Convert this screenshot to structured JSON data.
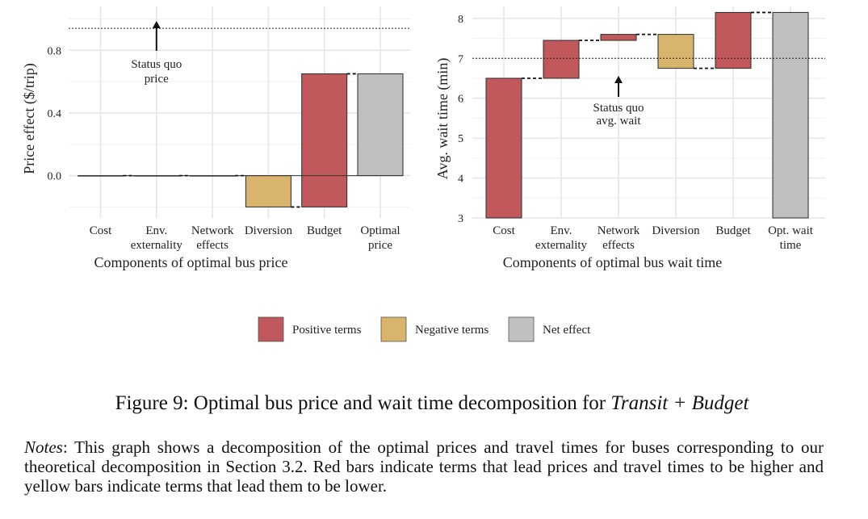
{
  "chart_data": [
    {
      "type": "waterfall",
      "ylabel": "Price effect ($/trip)",
      "xlabel": "Components of optimal bus price",
      "categories": [
        [
          "Cost"
        ],
        [
          "Env.",
          "externality"
        ],
        [
          "Network",
          "effects"
        ],
        [
          "Diversion"
        ],
        [
          "Budget"
        ],
        [
          "Optimal",
          "price"
        ]
      ],
      "bars": [
        {
          "start": 0.0,
          "end": 0.0,
          "kind": "positive"
        },
        {
          "start": 0.0,
          "end": 0.0,
          "kind": "positive"
        },
        {
          "start": 0.0,
          "end": 0.0,
          "kind": "positive"
        },
        {
          "start": 0.0,
          "end": -0.2,
          "kind": "negative"
        },
        {
          "start": -0.2,
          "end": 0.65,
          "kind": "positive"
        },
        {
          "start": 0.0,
          "end": 0.65,
          "kind": "net"
        }
      ],
      "yticks": [
        0.0,
        0.4,
        0.8
      ],
      "ytick_labels": [
        "0.0",
        "0.4",
        "0.8"
      ],
      "ylim": [
        -0.27,
        1.08
      ],
      "reference_line": 0.94,
      "reference_value": 0,
      "annotation": [
        "Status quo",
        "price"
      ],
      "annotation_category": 1
    },
    {
      "type": "waterfall",
      "ylabel": "Avg. wait time (min)",
      "xlabel": "Components of optimal bus wait time",
      "categories": [
        [
          "Cost"
        ],
        [
          "Env.",
          "externality"
        ],
        [
          "Network",
          "effects"
        ],
        [
          "Diversion"
        ],
        [
          "Budget"
        ],
        [
          "Opt. wait",
          "time"
        ]
      ],
      "bars": [
        {
          "start": 3.0,
          "end": 6.5,
          "kind": "positive"
        },
        {
          "start": 6.5,
          "end": 7.45,
          "kind": "positive"
        },
        {
          "start": 7.45,
          "end": 7.6,
          "kind": "positive"
        },
        {
          "start": 7.6,
          "end": 6.75,
          "kind": "negative"
        },
        {
          "start": 6.75,
          "end": 8.15,
          "kind": "positive"
        },
        {
          "start": 3.0,
          "end": 8.15,
          "kind": "net"
        }
      ],
      "yticks": [
        3,
        4,
        5,
        6,
        7,
        8
      ],
      "ytick_labels": [
        "3",
        "4",
        "5",
        "6",
        "7",
        "8"
      ],
      "ylim": [
        3.0,
        8.3
      ],
      "reference_line": 7.0,
      "annotation": [
        "Status quo",
        "avg. wait"
      ],
      "annotation_category": 2
    }
  ],
  "legend": [
    {
      "label": "Positive terms",
      "color": "#c0585c"
    },
    {
      "label": "Negative terms",
      "color": "#d9b46c"
    },
    {
      "label": "Net effect",
      "color": "#c0c0c0"
    }
  ],
  "colors": {
    "positive": "#c0585c",
    "negative": "#d9b46c",
    "net": "#bfbfbf"
  },
  "caption": {
    "prefix": "Figure 9: Optimal bus price and wait time decomposition for ",
    "italic": "Transit + Budget"
  },
  "notes": {
    "label": "Notes",
    "text": ":  This graph shows a decomposition of the optimal prices and travel times for buses corresponding to our theoretical decomposition in Section 3.2.  Red bars indicate terms that lead prices and travel times to be higher and yellow bars indicate terms that lead them to be lower."
  }
}
